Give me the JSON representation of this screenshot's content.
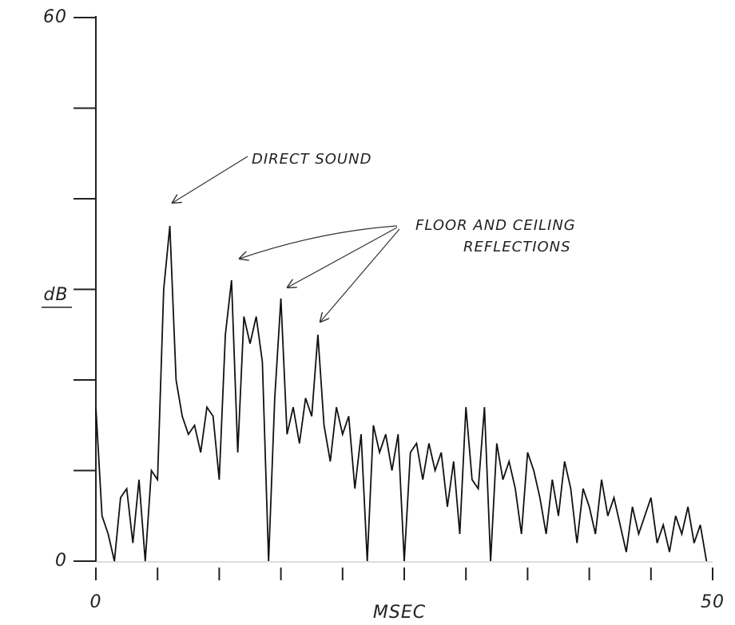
{
  "chart_data": {
    "type": "line",
    "x_label": "MSEC",
    "y_label": "dB",
    "annotations": [
      "DIRECT SOUND",
      "FLOOR AND CEILING",
      "REFLECTIONS"
    ],
    "color": "#111111",
    "xlim": [
      0,
      50
    ],
    "ylim": [
      0,
      60
    ],
    "xticks": [
      0,
      50
    ],
    "yticks": [
      0,
      60
    ],
    "xminor_ticks": [
      5,
      10,
      15,
      20,
      25,
      30,
      35,
      40,
      45
    ],
    "yminor_ticks": [
      10,
      20,
      30,
      40,
      50
    ],
    "x": [
      0,
      0.5,
      1,
      1.5,
      2,
      2.5,
      3,
      3.5,
      4,
      4.5,
      5,
      5.5,
      6,
      6.5,
      7,
      7.5,
      8,
      8.5,
      9,
      9.5,
      10,
      10.5,
      11,
      11.5,
      12,
      12.5,
      13,
      13.5,
      14,
      14.5,
      15,
      15.5,
      16,
      16.5,
      17,
      17.5,
      18,
      18.5,
      19,
      19.5,
      20,
      20.5,
      21,
      21.5,
      22,
      22.5,
      23,
      23.5,
      24,
      24.5,
      25,
      25.5,
      26,
      26.5,
      27,
      27.5,
      28,
      28.5,
      29,
      29.5,
      30,
      30.5,
      31,
      31.5,
      32,
      32.5,
      33,
      33.5,
      34,
      34.5,
      35,
      35.5,
      36,
      36.5,
      37,
      37.5,
      38,
      38.5,
      39,
      39.5,
      40,
      40.5,
      41,
      41.5,
      42,
      42.5,
      43,
      43.5,
      44,
      44.5,
      45,
      45.5,
      46,
      46.5,
      47,
      47.5,
      48,
      48.5,
      49,
      49.5
    ],
    "values": [
      17,
      5,
      3,
      0,
      7,
      8,
      2,
      9,
      0,
      10,
      9,
      30,
      37,
      20,
      16,
      14,
      15,
      12,
      17,
      16,
      9,
      25,
      31,
      12,
      27,
      24,
      27,
      22,
      0,
      18,
      29,
      14,
      17,
      13,
      18,
      16,
      25,
      15,
      11,
      17,
      14,
      16,
      8,
      14,
      0,
      15,
      12,
      14,
      10,
      14,
      0,
      12,
      13,
      9,
      13,
      10,
      12,
      6,
      11,
      3,
      17,
      9,
      8,
      17,
      0,
      13,
      9,
      11,
      8,
      3,
      12,
      10,
      7,
      3,
      9,
      5,
      11,
      8,
      2,
      8,
      6,
      3,
      9,
      5,
      7,
      4,
      1,
      6,
      3,
      5,
      7,
      2,
      4,
      1,
      5,
      3,
      6,
      2,
      4,
      0
    ]
  }
}
